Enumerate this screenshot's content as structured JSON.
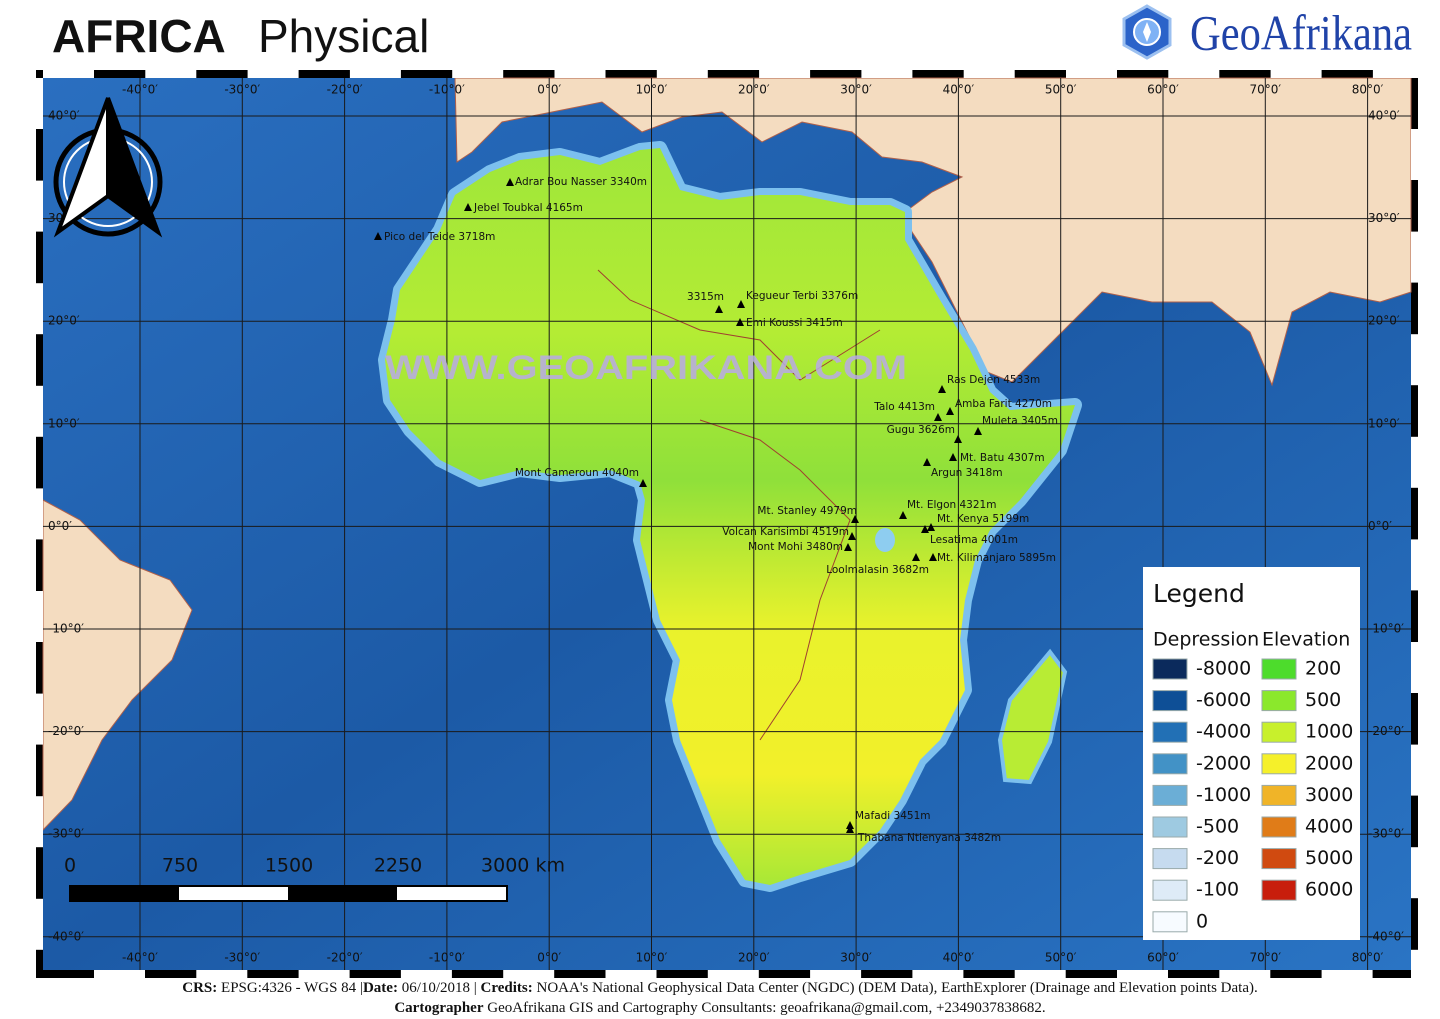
{
  "header": {
    "title_bold": "AFRICA",
    "title_rest": "Physical",
    "brand": "GeoAfrikana"
  },
  "map": {
    "watermark": "WWW.GEOAFRIKANA.COM",
    "lon_labels": [
      "-40°0′",
      "-30°0′",
      "-20°0′",
      "-10°0′",
      "0°0′",
      "10°0′",
      "20°0′",
      "30°0′",
      "40°0′",
      "50°0′",
      "60°0′",
      "70°0′",
      "80°0′"
    ],
    "lat_labels": [
      "40°0′",
      "30°0′",
      "20°0′",
      "10°0′",
      "0°0′",
      "-10°0′",
      "-20°0′",
      "-30°0′",
      "-40°0′"
    ],
    "peaks": [
      "Adrar Bou Nasser 3340m",
      "Jebel Toubkal 4165m",
      "Pico del Teide 3718m",
      "3315m",
      "Kegueur Terbi 3376m",
      "Emi Koussi 3415m",
      "Ras Dejen 4533m",
      "Amba Farit 4270m",
      "Talo 4413m",
      "Muleta 3405m",
      "Gugu 3626m",
      "Mt. Batu 4307m",
      "Argun 3418m",
      "Mont Cameroun 4040m",
      "Mt. Stanley 4979m",
      "Mt. Elgon 4321m",
      "Mt. Kenya 5199m",
      "Volcan Karisimbi 4519m",
      "Lesatima 4001m",
      "Mont Mohi 3480m",
      "Mt. Kilimanjaro 5895m",
      "Loolmalasin 3682m",
      "Mafadi 3451m",
      "Thabana Ntlenyana 3482m"
    ]
  },
  "scale_bar": {
    "labels": [
      "0",
      "750",
      "1500",
      "2250",
      "3000 km"
    ]
  },
  "legend": {
    "title": "Legend",
    "depression_heading": "Depression",
    "elevation_heading": "Elevation",
    "depression": [
      {
        "label": "-8000",
        "color": "#0b2a5c"
      },
      {
        "label": "-6000",
        "color": "#0e4f96"
      },
      {
        "label": "-4000",
        "color": "#2270b5"
      },
      {
        "label": "-2000",
        "color": "#4292c6"
      },
      {
        "label": "-1000",
        "color": "#6baed6"
      },
      {
        "label": "-500",
        "color": "#9ecae1"
      },
      {
        "label": "-200",
        "color": "#c6dbef"
      },
      {
        "label": "-100",
        "color": "#deebf7"
      },
      {
        "label": "0",
        "color": "#f7fbff"
      }
    ],
    "elevation": [
      {
        "label": "200",
        "color": "#4ddc2c"
      },
      {
        "label": "500",
        "color": "#8be82c"
      },
      {
        "label": "1000",
        "color": "#c8f02c"
      },
      {
        "label": "2000",
        "color": "#f5f02a"
      },
      {
        "label": "3000",
        "color": "#f0b428"
      },
      {
        "label": "4000",
        "color": "#e07c18"
      },
      {
        "label": "5000",
        "color": "#d04a10"
      },
      {
        "label": "6000",
        "color": "#c81e0c"
      }
    ]
  },
  "footer": {
    "line1": [
      {
        "text": "CRS:",
        "bold": true
      },
      {
        "text": " EPSG:4326 - WGS 84 |",
        "bold": false
      },
      {
        "text": "Date:",
        "bold": true
      },
      {
        "text": " 06/10/2018 | ",
        "bold": false
      },
      {
        "text": "Credits:",
        "bold": true
      },
      {
        "text": " NOAA's National Geophysical Data Center (NGDC) (DEM Data), EarthExplorer (Drainage and Elevation points Data).",
        "bold": false
      }
    ],
    "line2": [
      {
        "text": "Cartographer",
        "bold": true
      },
      {
        "text": " GeoAfrikana GIS and Cartography Consultants: geoafrikana@gmail.com, +2349037838682.",
        "bold": false
      }
    ]
  }
}
